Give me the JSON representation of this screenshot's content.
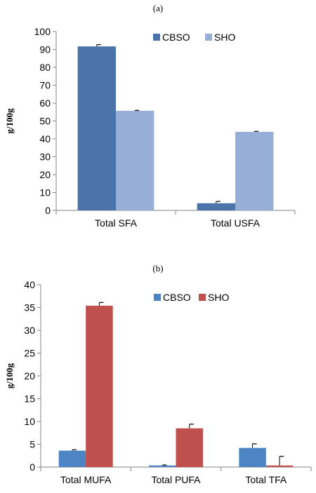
{
  "chart_data": [
    {
      "type": "bar",
      "title": "(a)",
      "ylabel": "g/100g",
      "xlabel": "",
      "ylim": [
        0,
        100
      ],
      "yticks": [
        0,
        10,
        20,
        30,
        40,
        50,
        60,
        70,
        80,
        90,
        100
      ],
      "categories": [
        "Total SFA",
        "Total USFA"
      ],
      "series": [
        {
          "name": "CBSO",
          "color": "#4a74aa",
          "values": [
            91.7,
            4.0
          ],
          "errors": [
            1.0,
            1.0
          ]
        },
        {
          "name": "SHO",
          "color": "#97aed6",
          "values": [
            55.7,
            43.9
          ],
          "errors": [
            0.2,
            0.3
          ]
        }
      ],
      "legend": "top-right",
      "grid": false
    },
    {
      "type": "bar",
      "title": "(b)",
      "ylabel": "g/100g",
      "xlabel": "",
      "ylim": [
        0,
        40
      ],
      "yticks": [
        0,
        5,
        10,
        15,
        20,
        25,
        30,
        35,
        40
      ],
      "categories": [
        "Total MUFA",
        "Total PUFA",
        "Total TFA"
      ],
      "series": [
        {
          "name": "CBSO",
          "color": "#4d84c4",
          "values": [
            3.6,
            0.35,
            4.2
          ],
          "errors": [
            0.2,
            0.1,
            0.9
          ]
        },
        {
          "name": "SHO",
          "color": "#c0504d",
          "values": [
            35.4,
            8.5,
            0.35
          ],
          "errors": [
            0.7,
            0.9,
            2.0
          ]
        }
      ],
      "legend": "top-center",
      "grid": false
    }
  ]
}
